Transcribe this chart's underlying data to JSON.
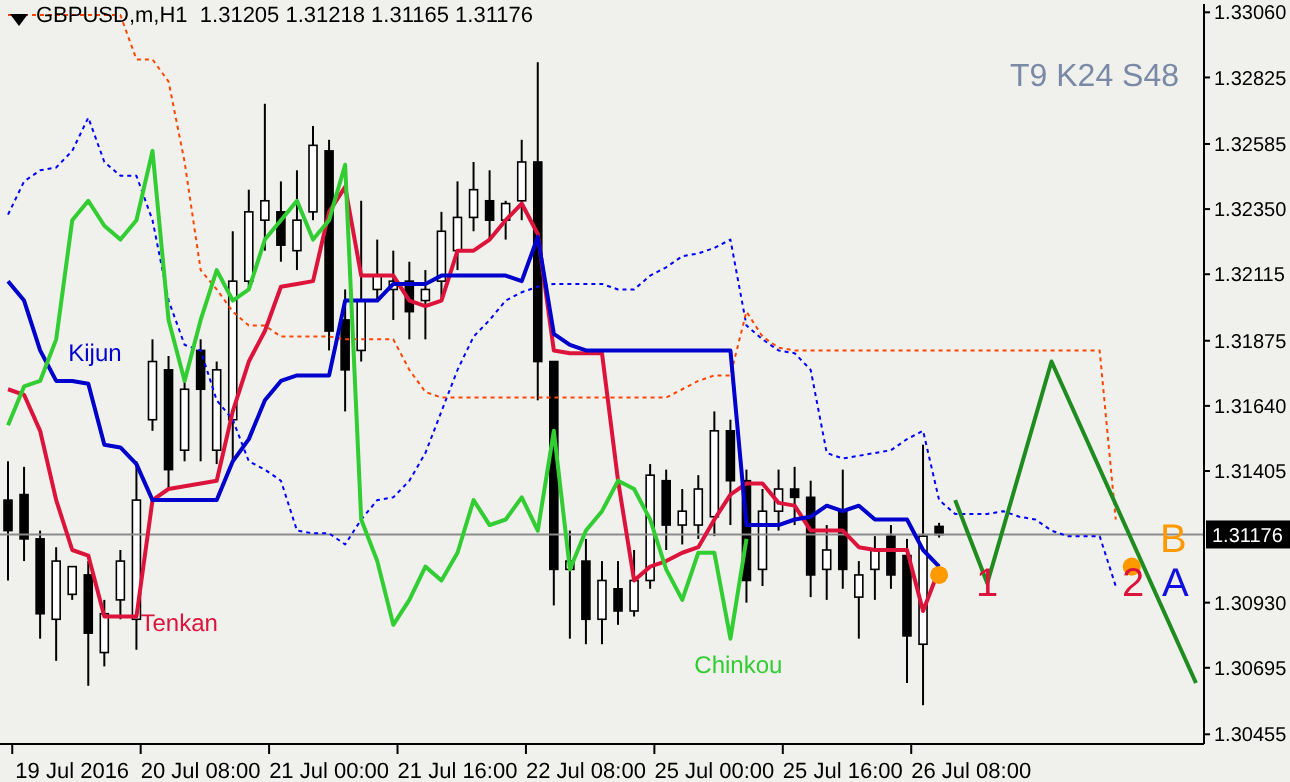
{
  "chart_data": {
    "type": "candlestick",
    "title": "GBPUSD,m,H1  1.31205 1.31218 1.31165 1.31176",
    "color": "#000000",
    "categories": [
      null,
      null,
      null,
      null,
      "19 Jul 2016",
      null,
      null,
      null,
      null,
      null,
      null,
      null,
      "20 Jul 08:00",
      null,
      null,
      null,
      null,
      null,
      null,
      null,
      "21 Jul 00:00",
      null,
      null,
      null,
      null,
      null,
      null,
      null,
      "21 Jul 16:00",
      null,
      null,
      null,
      null,
      null,
      null,
      null,
      "22 Jul 08:00",
      null,
      null,
      null,
      null,
      null,
      null,
      null,
      "25 Jul 00:00",
      null,
      null,
      null,
      null,
      null,
      null,
      null,
      "25 Jul 16:00",
      null,
      null,
      null,
      null,
      null,
      null,
      null,
      "26 Jul 08:00",
      null,
      null,
      null,
      null,
      null,
      null,
      null,
      null,
      null,
      null,
      null,
      null,
      null,
      null
    ],
    "ohlc": [
      [
        1.313,
        1.3144,
        1.3101,
        1.3119
      ],
      [
        1.3132,
        1.3142,
        1.3108,
        1.3116
      ],
      [
        1.3116,
        1.3119,
        1.308,
        1.3089
      ],
      [
        1.3087,
        1.3113,
        1.3072,
        1.3108
      ],
      [
        1.3096,
        1.3106,
        1.3094,
        1.3106
      ],
      [
        1.3103,
        1.3108,
        1.3063,
        1.3082
      ],
      [
        1.3075,
        1.3094,
        1.307,
        1.3089
      ],
      [
        1.3094,
        1.3112,
        1.3087,
        1.3108
      ],
      [
        1.3087,
        1.3144,
        1.3076,
        1.313
      ],
      [
        1.3159,
        1.3188,
        1.3155,
        1.318
      ],
      [
        1.3177,
        1.3182,
        1.3134,
        1.3141
      ],
      [
        1.3148,
        1.3173,
        1.3144,
        1.317
      ],
      [
        1.3184,
        1.3188,
        1.3144,
        1.317
      ],
      [
        1.3148,
        1.318,
        1.3143,
        1.3177
      ],
      [
        1.3159,
        1.3227,
        1.3144,
        1.3209
      ],
      [
        1.3209,
        1.3242,
        1.3206,
        1.3234
      ],
      [
        1.3231,
        1.3273,
        1.322,
        1.3238
      ],
      [
        1.3234,
        1.3245,
        1.3216,
        1.3222
      ],
      [
        1.322,
        1.3249,
        1.3213,
        1.3231
      ],
      [
        1.3234,
        1.3265,
        1.3231,
        1.3258
      ],
      [
        1.3256,
        1.326,
        1.3184,
        1.3191
      ],
      [
        1.3195,
        1.3206,
        1.3162,
        1.3177
      ],
      [
        1.3184,
        1.3238,
        1.318,
        1.3202
      ],
      [
        1.3206,
        1.3224,
        1.3202,
        1.3211
      ],
      [
        1.3206,
        1.322,
        1.3195,
        1.3209
      ],
      [
        1.3209,
        1.3216,
        1.3188,
        1.3198
      ],
      [
        1.3202,
        1.3213,
        1.3188,
        1.3206
      ],
      [
        1.3209,
        1.3234,
        1.3202,
        1.3227
      ],
      [
        1.322,
        1.3245,
        1.3213,
        1.3232
      ],
      [
        1.3232,
        1.3252,
        1.3227,
        1.3242
      ],
      [
        1.3238,
        1.3249,
        1.3224,
        1.3231
      ],
      [
        1.3231,
        1.3238,
        1.3224,
        1.3237
      ],
      [
        1.3238,
        1.326,
        1.3231,
        1.3252
      ],
      [
        1.3252,
        1.3288,
        1.3166,
        1.318
      ],
      [
        1.318,
        1.318,
        1.3092,
        1.3105
      ],
      [
        1.3105,
        1.3119,
        1.308,
        1.3108
      ],
      [
        1.3108,
        1.3116,
        1.3078,
        1.3087
      ],
      [
        1.3087,
        1.3108,
        1.3078,
        1.3101
      ],
      [
        1.3098,
        1.3108,
        1.3085,
        1.309
      ],
      [
        1.309,
        1.3112,
        1.3088,
        1.3101
      ],
      [
        1.3101,
        1.3143,
        1.3098,
        1.3139
      ],
      [
        1.3137,
        1.3141,
        1.3112,
        1.3121
      ],
      [
        1.3121,
        1.3134,
        1.3114,
        1.3126
      ],
      [
        1.3121,
        1.3139,
        1.3116,
        1.3134
      ],
      [
        1.3124,
        1.3162,
        1.3117,
        1.3155
      ],
      [
        1.3155,
        1.3159,
        1.3121,
        1.3137
      ],
      [
        1.3137,
        1.3141,
        1.3093,
        1.3101
      ],
      [
        1.3105,
        1.3134,
        1.3099,
        1.3126
      ],
      [
        1.3126,
        1.3141,
        1.3119,
        1.3134
      ],
      [
        1.3134,
        1.3142,
        1.3121,
        1.3131
      ],
      [
        1.3131,
        1.3137,
        1.3095,
        1.3103
      ],
      [
        1.3105,
        1.3121,
        1.3094,
        1.3112
      ],
      [
        1.3126,
        1.3141,
        1.3098,
        1.3105
      ],
      [
        1.3095,
        1.3108,
        1.308,
        1.3103
      ],
      [
        1.3105,
        1.3117,
        1.3094,
        1.3112
      ],
      [
        1.3117,
        1.3121,
        1.3098,
        1.3103
      ],
      [
        1.311,
        1.3116,
        1.3064,
        1.3081
      ],
      [
        1.3078,
        1.315,
        1.3056,
        1.3117
      ],
      [
        1.31205,
        1.31218,
        1.31165,
        1.31176
      ],
      null,
      null,
      null,
      null,
      null,
      null,
      null,
      null,
      null,
      null,
      null,
      null,
      null,
      null,
      null,
      null
    ],
    "series": [
      {
        "name": "Tenkan",
        "type": "line",
        "color": "#dc143c",
        "values": [
          1.317,
          1.3168,
          1.3155,
          1.313,
          1.3112,
          1.311,
          1.3088,
          1.3088,
          1.3088,
          1.313,
          1.3134,
          1.3135,
          1.3136,
          1.3137,
          1.3162,
          1.318,
          1.3191,
          1.3207,
          1.3208,
          1.3209,
          1.3234,
          1.3243,
          1.3211,
          1.3211,
          1.3211,
          1.3202,
          1.32,
          1.3202,
          1.322,
          1.322,
          1.3224,
          1.3231,
          1.3237,
          1.3226,
          1.3184,
          1.3183,
          1.3183,
          1.3183,
          1.3137,
          1.3101,
          1.3106,
          1.3108,
          1.3111,
          1.3113,
          1.3123,
          1.3132,
          1.3136,
          1.3136,
          1.3129,
          1.3128,
          1.3119,
          1.3119,
          1.3119,
          1.3113,
          1.3112,
          1.3112,
          1.3112,
          1.309,
          1.3105,
          null,
          null,
          null,
          null,
          null,
          null,
          null,
          null,
          null,
          null,
          null,
          null,
          null,
          null,
          null,
          null
        ]
      },
      {
        "name": "Kijun",
        "type": "line",
        "color": "#0000cd",
        "values": [
          1.3209,
          1.3202,
          1.3184,
          1.3173,
          1.3173,
          1.3172,
          1.315,
          1.3149,
          1.3143,
          1.313,
          1.313,
          1.313,
          1.313,
          1.313,
          1.3144,
          1.3152,
          1.3166,
          1.3173,
          1.3175,
          1.3175,
          1.3175,
          1.3202,
          1.3202,
          1.3202,
          1.3208,
          1.3208,
          1.3208,
          1.3211,
          1.3211,
          1.3211,
          1.3211,
          1.3211,
          1.3209,
          1.3225,
          1.319,
          1.3186,
          1.3184,
          1.3184,
          1.3184,
          1.3184,
          1.3184,
          1.3184,
          1.3184,
          1.3184,
          1.3184,
          1.3184,
          1.3121,
          1.3121,
          1.3121,
          1.3123,
          1.3124,
          1.3128,
          1.3126,
          1.3128,
          1.3123,
          1.3123,
          1.3123,
          1.3112,
          1.3106,
          null,
          null,
          null,
          null,
          null,
          null,
          null,
          null,
          null,
          null,
          null,
          null,
          null,
          null,
          null,
          null
        ]
      },
      {
        "name": "Chinkou",
        "type": "line",
        "color": "#32cd32",
        "values": [
          1.3157,
          1.3171,
          1.3173,
          1.3188,
          1.3231,
          1.3238,
          1.3229,
          1.3224,
          1.3231,
          1.3256,
          1.3195,
          1.3173,
          1.3195,
          1.3213,
          1.3202,
          1.3206,
          1.3224,
          1.3231,
          1.3238,
          1.3224,
          1.3231,
          1.3251,
          1.3123,
          1.3108,
          1.3085,
          1.3094,
          1.3106,
          1.3101,
          1.3111,
          1.313,
          1.3121,
          1.3123,
          1.3131,
          1.3119,
          1.3155,
          1.3105,
          1.3119,
          1.3126,
          1.3137,
          1.3134,
          1.3123,
          1.3105,
          1.3094,
          1.3111,
          1.3111,
          1.308,
          1.3116,
          null,
          null,
          null,
          null,
          null,
          null,
          null,
          null,
          null,
          null,
          null,
          null,
          null,
          null,
          null,
          null,
          null,
          null,
          null,
          null,
          null,
          null,
          null,
          null,
          null,
          null,
          null,
          null
        ]
      },
      {
        "type": "line",
        "color": "#0000ff",
        "line_style": "dotted",
        "values": [
          1.3233,
          1.3245,
          1.3249,
          1.325,
          1.3256,
          1.3268,
          1.3252,
          1.3247,
          1.3247,
          1.3231,
          1.3202,
          1.3186,
          1.3184,
          1.3166,
          1.3159,
          1.3144,
          1.3141,
          1.3137,
          1.3119,
          1.3118,
          1.3118,
          1.3114,
          1.3123,
          1.313,
          1.3131,
          1.3137,
          1.3147,
          1.3162,
          1.3177,
          1.3189,
          1.3195,
          1.3202,
          1.3205,
          1.3207,
          1.3208,
          1.3208,
          1.3208,
          1.3208,
          1.3206,
          1.3206,
          1.3211,
          1.3214,
          1.3218,
          1.3219,
          1.3221,
          1.3224,
          1.3193,
          1.3188,
          1.3184,
          1.3183,
          1.3177,
          1.3147,
          1.3145,
          1.3146,
          1.3147,
          1.3148,
          1.3152,
          1.3155,
          1.313,
          1.3125,
          1.3125,
          1.3125,
          1.3126,
          1.3124,
          1.3123,
          1.3119,
          1.3117,
          1.3117,
          1.3117,
          1.3099,
          null,
          null,
          null,
          null,
          null
        ]
      },
      {
        "type": "line",
        "color": "#ff4500",
        "line_style": "dotted",
        "values": [
          1.3305,
          1.3305,
          1.3305,
          1.3305,
          1.3305,
          1.3305,
          1.3305,
          1.3305,
          1.3289,
          1.3289,
          1.3281,
          1.3252,
          1.3213,
          1.3206,
          1.3198,
          1.3193,
          1.3193,
          1.3189,
          1.3189,
          1.3189,
          1.3189,
          1.3188,
          1.3188,
          1.3188,
          1.3188,
          1.3177,
          1.3169,
          1.3167,
          1.3167,
          1.3167,
          1.3167,
          1.3167,
          1.3167,
          1.3167,
          1.3167,
          1.3167,
          1.3167,
          1.3167,
          1.3167,
          1.3167,
          1.3167,
          1.3167,
          1.317,
          1.3173,
          1.3175,
          1.3175,
          1.3198,
          1.3189,
          1.3185,
          1.3184,
          1.3184,
          1.3184,
          1.3184,
          1.3184,
          1.3184,
          1.3184,
          1.3184,
          1.3184,
          1.3184,
          1.3184,
          1.3184,
          1.3184,
          1.3184,
          1.3184,
          1.3184,
          1.3184,
          1.3184,
          1.3184,
          1.3184,
          1.3123,
          null,
          null,
          null,
          null,
          null
        ]
      },
      {
        "type": "line",
        "color": "#1e8c1e",
        "values": [
          null,
          null,
          null,
          null,
          null,
          null,
          null,
          null,
          null,
          null,
          null,
          null,
          null,
          null,
          null,
          null,
          null,
          null,
          null,
          null,
          null,
          null,
          null,
          null,
          null,
          null,
          null,
          null,
          null,
          null,
          null,
          null,
          null,
          null,
          null,
          null,
          null,
          null,
          null,
          null,
          null,
          null,
          null,
          null,
          null,
          null,
          null,
          null,
          null,
          null,
          null,
          null,
          null,
          null,
          null,
          null,
          null,
          null,
          null,
          1.313,
          null,
          1.31,
          null,
          null,
          null,
          1.318,
          null,
          null,
          null,
          null,
          null,
          null,
          null,
          null,
          1.3064
        ]
      },
      {
        "type": "scatter",
        "marker": "circle",
        "color": "#ff9900",
        "values": [
          null,
          null,
          null,
          null,
          null,
          null,
          null,
          null,
          null,
          null,
          null,
          null,
          null,
          null,
          null,
          null,
          null,
          null,
          null,
          null,
          null,
          null,
          null,
          null,
          null,
          null,
          null,
          null,
          null,
          null,
          null,
          null,
          null,
          null,
          null,
          null,
          null,
          null,
          null,
          null,
          null,
          null,
          null,
          null,
          null,
          null,
          null,
          null,
          null,
          null,
          null,
          null,
          null,
          null,
          null,
          null,
          null,
          null,
          1.3103,
          null,
          null,
          null,
          null,
          null,
          null,
          null,
          null,
          null,
          null,
          null,
          1.3106,
          null,
          null,
          null,
          null
        ]
      }
    ],
    "ylim": [
      1.3042,
      1.3309
    ],
    "yticks": [
      {
        "value": 1.30455,
        "label": "1.30455"
      },
      {
        "value": 1.30695,
        "label": "1.30695"
      },
      {
        "value": 1.3093,
        "label": "1.30930"
      },
      {
        "value": 1.31405,
        "label": "1.31405"
      },
      {
        "value": 1.3164,
        "label": "1.31640"
      },
      {
        "value": 1.31875,
        "label": "1.31875"
      },
      {
        "value": 1.32115,
        "label": "1.32115"
      },
      {
        "value": 1.3235,
        "label": "1.32350"
      },
      {
        "value": 1.32585,
        "label": "1.32585"
      },
      {
        "value": 1.32825,
        "label": "1.32825"
      },
      {
        "value": 1.3306,
        "label": "1.33060"
      }
    ],
    "ref_lines": [
      {
        "axis": "y",
        "value": 1.31176,
        "label": "1.31176",
        "color": "#8c8c8c"
      }
    ],
    "annotations": [
      "T9 K24 S48",
      "1",
      "2",
      "A",
      "B"
    ]
  }
}
